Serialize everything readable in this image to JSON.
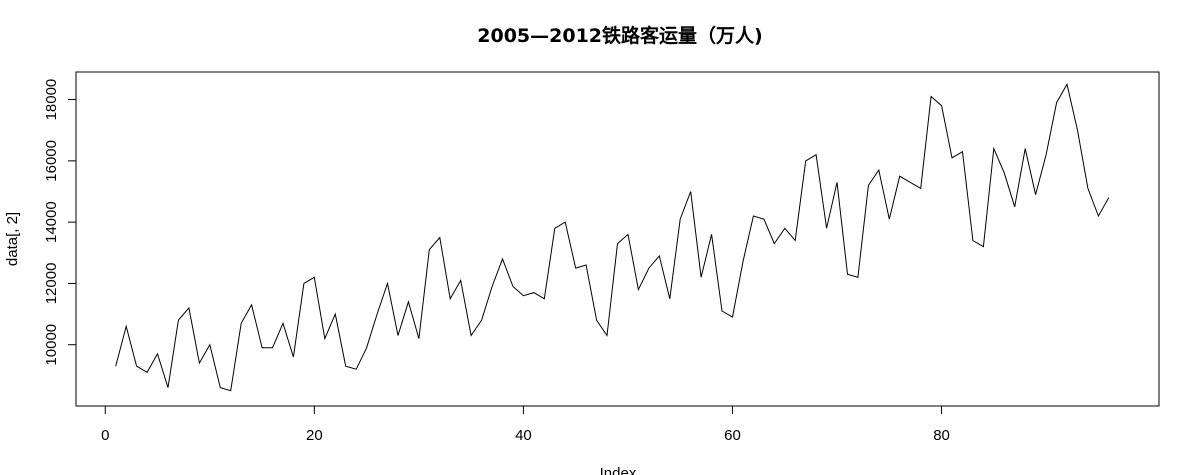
{
  "chart_data": {
    "type": "line",
    "title": "2005—2012铁路客运量（万人)",
    "xlabel": "Index",
    "ylabel": "data[, 2]",
    "xlim": [
      -2.8,
      100.8
    ],
    "ylim": [
      8000,
      18900
    ],
    "x_ticks": [
      0,
      20,
      40,
      60,
      80
    ],
    "y_ticks": [
      10000,
      12000,
      14000,
      16000,
      18000
    ],
    "x_tick_labels": [
      "0",
      "20",
      "40",
      "60",
      "80"
    ],
    "y_tick_labels": [
      "10000",
      "12000",
      "14000",
      "16000",
      "18000"
    ],
    "grid": false,
    "line_color": "#000000",
    "series": [
      {
        "x": [
          1,
          2,
          3,
          4,
          5,
          6,
          7,
          8,
          9,
          10,
          11,
          12,
          13,
          14,
          15,
          16,
          17,
          18,
          19,
          20,
          21,
          22,
          23,
          24,
          25,
          26,
          27,
          28,
          29,
          30,
          31,
          32,
          33,
          34,
          35,
          36,
          37,
          38,
          39,
          40,
          41,
          42,
          43,
          44,
          45,
          46,
          47,
          48,
          49,
          50,
          51,
          52,
          53,
          54,
          55,
          56,
          57,
          58,
          59,
          60,
          61,
          62,
          63,
          64,
          65,
          66,
          67,
          68,
          69,
          70,
          71,
          72,
          73,
          74,
          75,
          76,
          77,
          78,
          79,
          80,
          81,
          82,
          83,
          84,
          85,
          86,
          87,
          88,
          89,
          90,
          91,
          92,
          93,
          94,
          95,
          96
        ],
        "values": [
          9300,
          10600,
          9300,
          9100,
          9700,
          8600,
          10800,
          11200,
          9400,
          10000,
          8600,
          8500,
          10700,
          11300,
          9900,
          9900,
          10700,
          9600,
          12000,
          12200,
          10200,
          11000,
          9300,
          9200,
          9900,
          11000,
          12000,
          10300,
          11400,
          10200,
          13100,
          13500,
          11500,
          12100,
          10300,
          10800,
          11900,
          12800,
          11900,
          11600,
          11700,
          11500,
          13800,
          14000,
          12500,
          12600,
          10800,
          10300,
          13300,
          13600,
          11800,
          12500,
          12900,
          11500,
          14100,
          15000,
          12200,
          13600,
          11100,
          10900,
          12700,
          14200,
          14100,
          13300,
          13800,
          13400,
          16000,
          16200,
          13800,
          15300,
          12300,
          12200,
          15200,
          15700,
          14100,
          15500,
          15300,
          15100,
          18100,
          17800,
          16100,
          16300,
          13400,
          13200,
          16400,
          15600,
          14500,
          16400,
          14900,
          16200,
          17900,
          18500,
          17000,
          15100,
          14200,
          14800
        ]
      }
    ]
  }
}
